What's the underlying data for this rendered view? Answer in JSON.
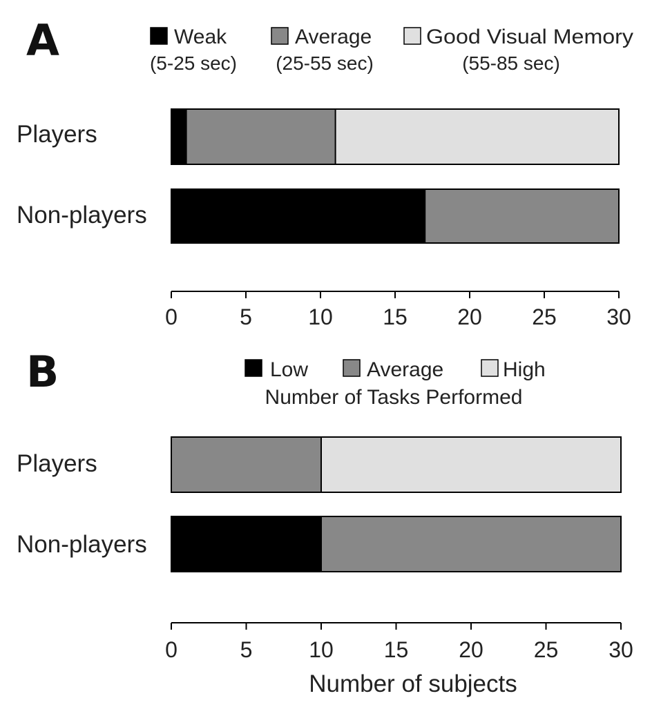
{
  "chart_data": [
    {
      "type": "bar",
      "stacked": true,
      "orientation": "horizontal",
      "panel_label": "A",
      "legend_title": "",
      "legend": [
        {
          "name": "Weak",
          "range": "(5-25 sec)",
          "color": "#000000"
        },
        {
          "name": "Average",
          "range": "(25-55 sec)",
          "color": "#888888"
        },
        {
          "name": "Good Visual Memory",
          "range": "(55-85 sec)",
          "color": "#e0e0e0"
        }
      ],
      "categories": [
        "Players",
        "Non-players"
      ],
      "series": [
        {
          "name": "Weak",
          "values": [
            1,
            17
          ]
        },
        {
          "name": "Average",
          "values": [
            10,
            13
          ]
        },
        {
          "name": "Good Visual Memory",
          "values": [
            19,
            0
          ]
        }
      ],
      "xlim": [
        0,
        30
      ],
      "xticks": [
        0,
        5,
        10,
        15,
        20,
        25,
        30
      ],
      "xlabel": "",
      "grid": false,
      "legend_position": "top"
    },
    {
      "type": "bar",
      "stacked": true,
      "orientation": "horizontal",
      "panel_label": "B",
      "legend_title": "Number of Tasks Performed",
      "legend": [
        {
          "name": "Low",
          "range": "",
          "color": "#000000"
        },
        {
          "name": "Average",
          "range": "",
          "color": "#888888"
        },
        {
          "name": "High",
          "range": "",
          "color": "#e0e0e0"
        }
      ],
      "categories": [
        "Players",
        "Non-players"
      ],
      "series": [
        {
          "name": "Low",
          "values": [
            0,
            10
          ]
        },
        {
          "name": "Average",
          "values": [
            10,
            20
          ]
        },
        {
          "name": "High",
          "values": [
            20,
            0
          ]
        }
      ],
      "xlim": [
        0,
        30
      ],
      "xticks": [
        0,
        5,
        10,
        15,
        20,
        25,
        30
      ],
      "xlabel": "Number of subjects",
      "grid": false,
      "legend_position": "top"
    }
  ]
}
